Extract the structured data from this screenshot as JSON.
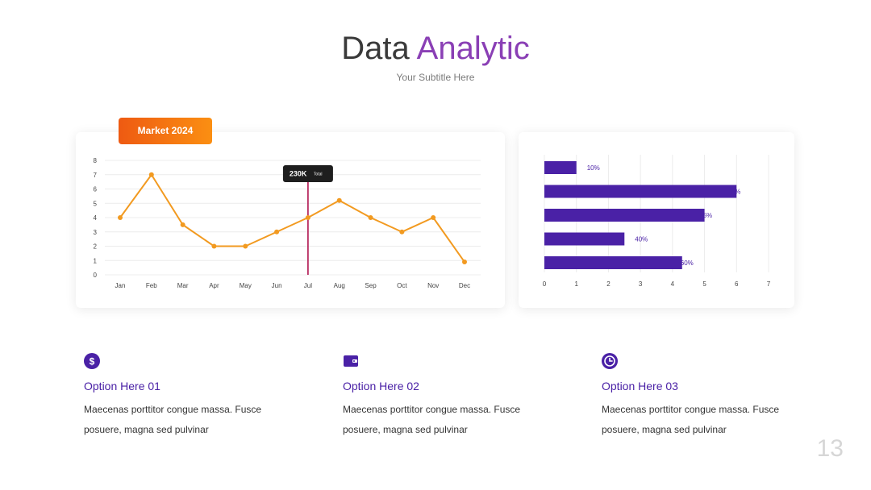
{
  "header": {
    "title_main": "Data",
    "title_accent": "Analytic",
    "subtitle": "Your Subtitle Here"
  },
  "badge": {
    "label": "Market 2024"
  },
  "chart_data": [
    {
      "type": "line",
      "title": "",
      "categories": [
        "Jan",
        "Feb",
        "Mar",
        "Apr",
        "May",
        "Jun",
        "Jul",
        "Aug",
        "Sep",
        "Oct",
        "Nov",
        "Dec"
      ],
      "values": [
        4,
        7,
        3.5,
        2,
        2,
        3,
        4,
        5.2,
        4,
        3,
        4,
        0.9
      ],
      "ylim": [
        0,
        8
      ],
      "yticks": [
        0,
        1,
        2,
        3,
        4,
        5,
        6,
        7,
        8
      ],
      "grid": true,
      "color": "#f29a20",
      "marker": {
        "category": "Jul",
        "label": "230K",
        "sublabel": "Total",
        "color": "#b0124e"
      }
    },
    {
      "type": "bar",
      "orientation": "horizontal",
      "values": [
        1,
        6,
        5,
        2.5,
        4.3
      ],
      "labels": [
        "10%",
        "%",
        "5%",
        "40%",
        "60%"
      ],
      "xlim": [
        0,
        7
      ],
      "xticks": [
        0,
        1,
        2,
        3,
        4,
        5,
        6,
        7
      ],
      "grid": true,
      "color": "#4a21a6"
    }
  ],
  "options": [
    {
      "icon": "dollar-icon",
      "title": "Option Here 01",
      "text": "Maecenas porttitor congue massa. Fusce posuere, magna sed pulvinar"
    },
    {
      "icon": "wallet-icon",
      "title": "Option Here 02",
      "text": "Maecenas porttitor congue massa. Fusce posuere, magna sed pulvinar"
    },
    {
      "icon": "clock-icon",
      "title": "Option Here 03",
      "text": "Maecenas porttitor congue massa. Fusce posuere, magna sed pulvinar"
    }
  ],
  "page_number": "13"
}
